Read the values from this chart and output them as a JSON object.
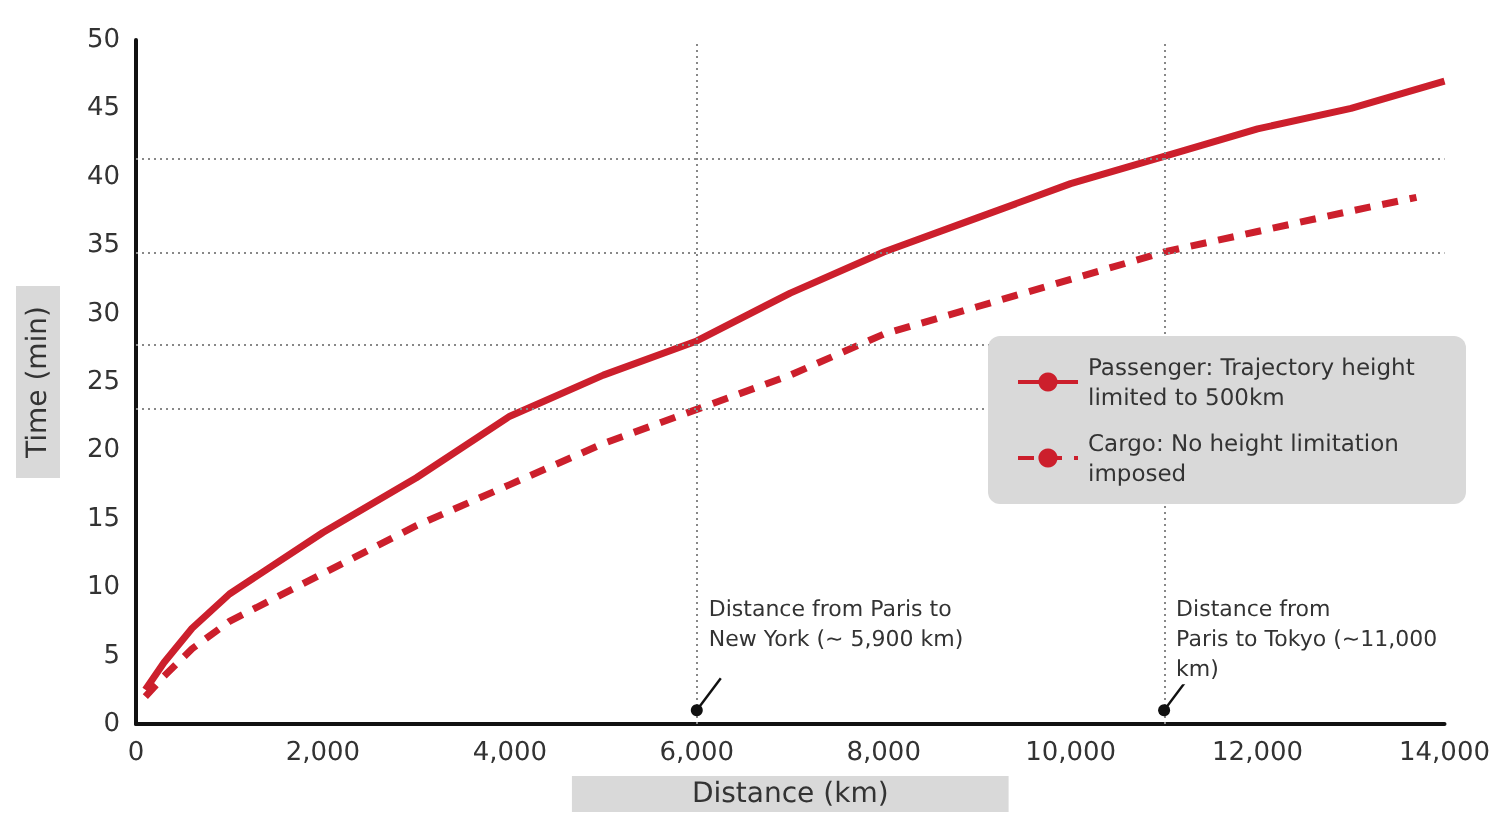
{
  "chart_data": {
    "type": "line",
    "xlabel": "Distance (km)",
    "ylabel": "Time (min)",
    "xlim": [
      0,
      14000
    ],
    "xticks": [
      {
        "value": 0,
        "label": "0"
      },
      {
        "value": 2000,
        "label": "2,000"
      },
      {
        "value": 4000,
        "label": "4,000"
      },
      {
        "value": 6000,
        "label": "6,000"
      },
      {
        "value": 8000,
        "label": "8,000"
      },
      {
        "value": 10000,
        "label": "10,000"
      },
      {
        "value": 12000,
        "label": "12,000"
      },
      {
        "value": 14000,
        "label": "14,000"
      }
    ],
    "ylim": [
      0,
      50
    ],
    "yticks": [
      0,
      5,
      10,
      15,
      20,
      25,
      30,
      35,
      40,
      45,
      50
    ],
    "grid": false,
    "legend": "right",
    "marker": "none",
    "series": [
      {
        "name": "Passenger: Trajectory height limited to 500km",
        "color": "#cc1f2c",
        "line_style": "solid",
        "x": [
          100,
          300,
          600,
          1000,
          2000,
          3000,
          4000,
          5000,
          6000,
          7000,
          8000,
          9000,
          10000,
          11000,
          12000,
          13000,
          14000
        ],
        "values": [
          2.5,
          4.5,
          7,
          9.5,
          14,
          18,
          22.5,
          25.5,
          28,
          31.5,
          34.5,
          37,
          39.5,
          41.5,
          43.5,
          45,
          47
        ]
      },
      {
        "name": "Cargo: No height limitation imposed",
        "color": "#cc1f2c",
        "line_style": "dashed",
        "x": [
          100,
          300,
          600,
          1000,
          2000,
          3000,
          4000,
          5000,
          6000,
          7000,
          8000,
          9000,
          10000,
          11000,
          12000,
          13000,
          13700
        ],
        "values": [
          2,
          3.5,
          5.5,
          7.5,
          11,
          14.5,
          17.5,
          20.5,
          23,
          25.5,
          28.5,
          30.5,
          32.5,
          34.5,
          36,
          37.5,
          38.5
        ]
      }
    ],
    "ref_lines": [
      {
        "axis": "x",
        "value": 6000,
        "line_style": "dotted"
      },
      {
        "axis": "x",
        "value": 11000,
        "line_style": "dotted"
      },
      {
        "axis": "y",
        "value": 41.3,
        "line_style": "dotted"
      },
      {
        "axis": "y",
        "value": 34.5,
        "line_style": "dotted"
      },
      {
        "axis": "y",
        "value": 27.8,
        "line_style": "dotted"
      },
      {
        "axis": "y",
        "value": 23,
        "line_style": "dotted"
      }
    ],
    "annotations": [
      {
        "text": "Distance from Paris to\nNew York (~ 5,900 km)",
        "x": 6000,
        "y": 1
      },
      {
        "text": "Distance from\nParis to Tokyo (~11,000\nkm)",
        "x": 11000,
        "y": 1
      }
    ]
  }
}
